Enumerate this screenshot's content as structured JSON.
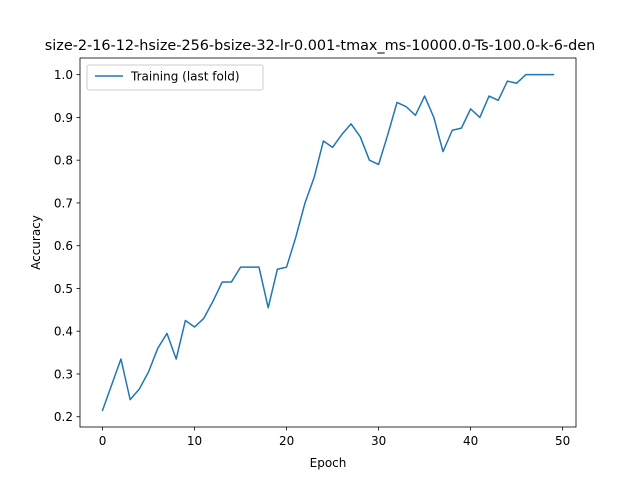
{
  "chart_data": {
    "type": "line",
    "title": "size-2-16-12-hsize-256-bsize-32-lr-0.001-tmax_ms-10000.0-Ts-100.0-k-6-den",
    "xlabel": "Epoch",
    "ylabel": "Accuracy",
    "xlim": [
      -2.45,
      51.45
    ],
    "ylim": [
      0.176,
      1.039
    ],
    "xticks": [
      0,
      10,
      20,
      30,
      40,
      50
    ],
    "xtick_labels": [
      "0",
      "10",
      "20",
      "30",
      "40",
      "50"
    ],
    "yticks": [
      0.2,
      0.3,
      0.4,
      0.5,
      0.6,
      0.7,
      0.8,
      0.9,
      1.0
    ],
    "ytick_labels": [
      "0.2",
      "0.3",
      "0.4",
      "0.5",
      "0.6",
      "0.7",
      "0.8",
      "0.9",
      "1.0"
    ],
    "grid": false,
    "legend_position": "upper-left",
    "series": [
      {
        "name": "Training (last fold)",
        "color": "#1f77b4",
        "x": [
          0,
          1,
          2,
          3,
          4,
          5,
          6,
          7,
          8,
          9,
          10,
          11,
          12,
          13,
          14,
          15,
          16,
          17,
          18,
          19,
          20,
          21,
          22,
          23,
          24,
          25,
          26,
          27,
          28,
          29,
          30,
          31,
          32,
          33,
          34,
          35,
          36,
          37,
          38,
          39,
          40,
          41,
          42,
          43,
          44,
          45,
          46,
          47,
          48,
          49
        ],
        "values": [
          0.215,
          0.275,
          0.335,
          0.24,
          0.265,
          0.305,
          0.36,
          0.395,
          0.335,
          0.425,
          0.41,
          0.43,
          0.47,
          0.515,
          0.515,
          0.55,
          0.55,
          0.55,
          0.455,
          0.545,
          0.55,
          0.62,
          0.7,
          0.76,
          0.845,
          0.83,
          0.86,
          0.885,
          0.855,
          0.8,
          0.79,
          0.86,
          0.935,
          0.925,
          0.905,
          0.95,
          0.9,
          0.82,
          0.87,
          0.875,
          0.92,
          0.9,
          0.95,
          0.94,
          0.985,
          0.98,
          1.0,
          1.0,
          1.0,
          1.0
        ]
      }
    ]
  }
}
